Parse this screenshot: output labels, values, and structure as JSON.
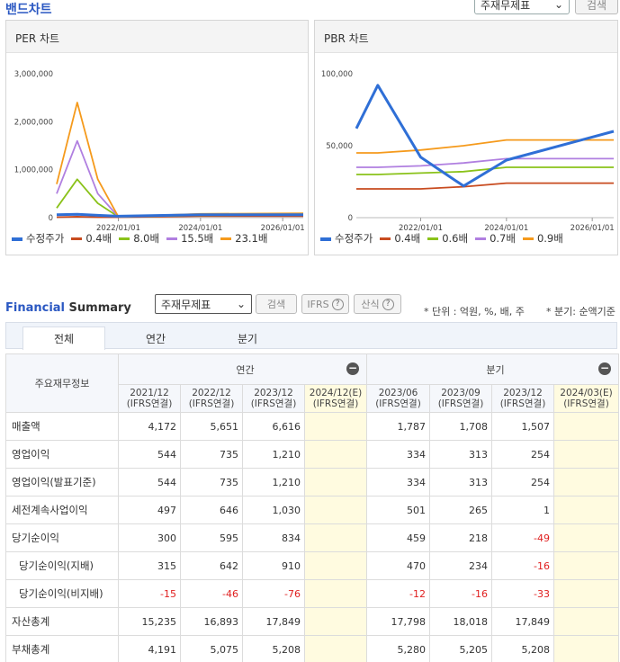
{
  "page": {
    "title": "밴드차트"
  },
  "top_controls": {
    "select_value": "주재무제표",
    "search_label": "검색"
  },
  "per_chart": {
    "title": "PER 차트",
    "y_ticks": [
      "3,000,000",
      "2,000,000",
      "1,000,000",
      "0"
    ],
    "x_ticks": [
      "2022/01/01",
      "2024/01/01",
      "2026/01/01"
    ],
    "legend": [
      {
        "label": "수정주가",
        "color": "#2f6fd6"
      },
      {
        "label": "0.4배",
        "color": "#c84b1f"
      },
      {
        "label": "8.0배",
        "color": "#8ac21a"
      },
      {
        "label": "15.5배",
        "color": "#b07fe0"
      },
      {
        "label": "23.1배",
        "color": "#f59a1c"
      }
    ]
  },
  "pbr_chart": {
    "title": "PBR 차트",
    "y_ticks": [
      "100,000",
      "50,000",
      "0"
    ],
    "x_ticks": [
      "2022/01/01",
      "2024/01/01",
      "2026/01/01"
    ],
    "legend": [
      {
        "label": "수정주가",
        "color": "#2f6fd6"
      },
      {
        "label": "0.4배",
        "color": "#c84b1f"
      },
      {
        "label": "0.6배",
        "color": "#8ac21a"
      },
      {
        "label": "0.7배",
        "color": "#b07fe0"
      },
      {
        "label": "0.9배",
        "color": "#f59a1c"
      }
    ]
  },
  "chart_data": [
    {
      "type": "line",
      "title": "PER 차트",
      "ylim": [
        0,
        3000000
      ],
      "x": [
        "2020/07",
        "2021/01",
        "2021/07",
        "2022/01",
        "2024/01",
        "2026/07"
      ],
      "series": [
        {
          "name": "수정주가",
          "values": [
            60000,
            70000,
            50000,
            30000,
            60000,
            60000
          ]
        },
        {
          "name": "0.4배",
          "values": [
            10000,
            20000,
            10000,
            10000,
            30000,
            30000
          ]
        },
        {
          "name": "8.0배",
          "values": [
            200000,
            800000,
            300000,
            20000,
            50000,
            60000
          ]
        },
        {
          "name": "15.5배",
          "values": [
            500000,
            1600000,
            500000,
            20000,
            60000,
            70000
          ]
        },
        {
          "name": "23.1배",
          "values": [
            700000,
            2400000,
            800000,
            20000,
            80000,
            90000
          ]
        }
      ]
    },
    {
      "type": "line",
      "title": "PBR 차트",
      "ylim": [
        0,
        100000
      ],
      "x": [
        "2020/07",
        "2021/01",
        "2022/01",
        "2023/01",
        "2024/01",
        "2026/07"
      ],
      "series": [
        {
          "name": "수정주가",
          "values": [
            62000,
            92000,
            42000,
            22000,
            40000,
            60000
          ]
        },
        {
          "name": "0.4배",
          "values": [
            20000,
            20000,
            20000,
            21500,
            24000,
            24000
          ]
        },
        {
          "name": "0.6배",
          "values": [
            30000,
            30000,
            31000,
            32000,
            35000,
            35000
          ]
        },
        {
          "name": "0.7배",
          "values": [
            35000,
            35000,
            36000,
            38000,
            41000,
            41000
          ]
        },
        {
          "name": "0.9배",
          "values": [
            45000,
            45000,
            47000,
            50000,
            54000,
            54000
          ]
        }
      ]
    }
  ],
  "financial_summary": {
    "title_highlight": "Financial",
    "title_rest": " Summary",
    "select_value": "주재무제표",
    "search_label": "검색",
    "ifrs_label": "IFRS",
    "calc_label": "산식",
    "help_glyph": "?",
    "unit_note": "* 단위 : 억원, %, 배, 주",
    "quarter_note": "* 분기: 순액기준",
    "tabs": [
      "전체",
      "연간",
      "분기"
    ],
    "header_label": "주요재무정보",
    "group_annual": "연간",
    "group_quarter": "분기",
    "collapse_glyph": "−",
    "periods": [
      {
        "date": "2021/12",
        "basis": "(IFRS연결)"
      },
      {
        "date": "2022/12",
        "basis": "(IFRS연결)"
      },
      {
        "date": "2023/12",
        "basis": "(IFRS연결)"
      },
      {
        "date": "2024/12(E)",
        "basis": "(IFRS연결)"
      },
      {
        "date": "2023/06",
        "basis": "(IFRS연결)"
      },
      {
        "date": "2023/09",
        "basis": "(IFRS연결)"
      },
      {
        "date": "2023/12",
        "basis": "(IFRS연결)"
      },
      {
        "date": "2024/03(E)",
        "basis": "(IFRS연결)"
      }
    ],
    "rows": [
      {
        "label": "매출액",
        "values": [
          "4,172",
          "5,651",
          "6,616",
          "",
          "1,787",
          "1,708",
          "1,507",
          ""
        ]
      },
      {
        "label": "영업이익",
        "values": [
          "544",
          "735",
          "1,210",
          "",
          "334",
          "313",
          "254",
          ""
        ]
      },
      {
        "label": "영업이익(발표기준)",
        "values": [
          "544",
          "735",
          "1,210",
          "",
          "334",
          "313",
          "254",
          ""
        ]
      },
      {
        "label": "세전계속사업이익",
        "values": [
          "497",
          "646",
          "1,030",
          "",
          "501",
          "265",
          "1",
          ""
        ]
      },
      {
        "label": "당기순이익",
        "values": [
          "300",
          "595",
          "834",
          "",
          "459",
          "218",
          "-49",
          ""
        ]
      },
      {
        "label": "당기순이익(지배)",
        "values": [
          "315",
          "642",
          "910",
          "",
          "470",
          "234",
          "-16",
          ""
        ]
      },
      {
        "label": "당기순이익(비지배)",
        "values": [
          "-15",
          "-46",
          "-76",
          "",
          "-12",
          "-16",
          "-33",
          ""
        ]
      },
      {
        "label": "자산총계",
        "values": [
          "15,235",
          "16,893",
          "17,849",
          "",
          "17,798",
          "18,018",
          "17,849",
          ""
        ]
      },
      {
        "label": "부채총계",
        "values": [
          "4,191",
          "5,075",
          "5,208",
          "",
          "5,280",
          "5,205",
          "5,208",
          ""
        ]
      }
    ]
  }
}
